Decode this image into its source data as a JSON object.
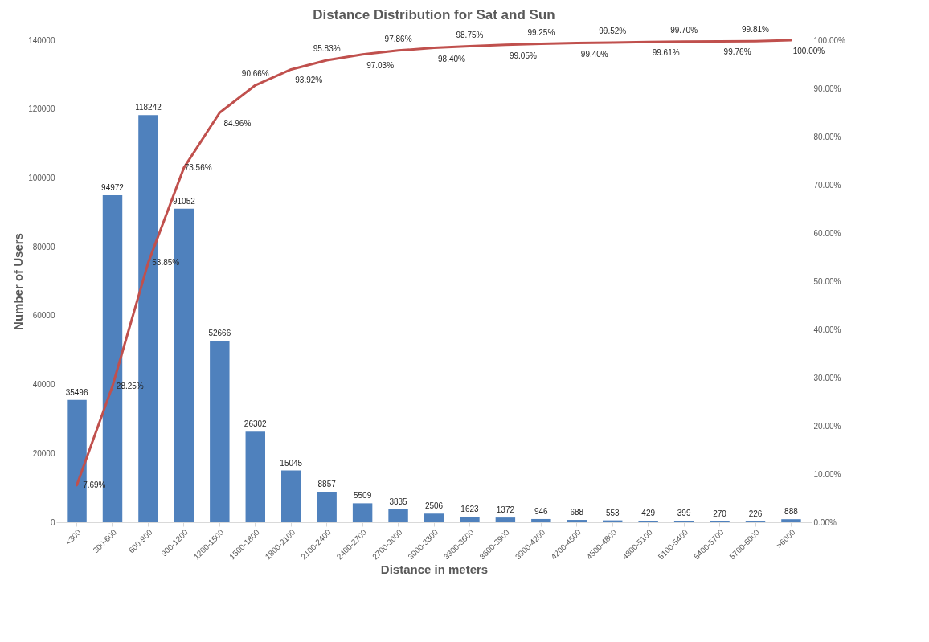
{
  "chart_data": {
    "type": "bar",
    "title": "Distance Distribution for Sat and Sun",
    "xlabel": "Distance in meters",
    "ylabel": "Number of Users",
    "categories": [
      "<300",
      "300-600",
      "600-900",
      "900-1200",
      "1200-1500",
      "1500-1800",
      "1800-2100",
      "2100-2400",
      "2400-2700",
      "2700-3000",
      "3000-3300",
      "3300-3600",
      "3600-3900",
      "3900-4200",
      "4200-4500",
      "4500-4800",
      "4800-5100",
      "5100-5400",
      "5400-5700",
      "5700-6000",
      ">6000"
    ],
    "series": [
      {
        "color": "#4f81bd",
        "values": [
          35496,
          94972,
          118242,
          91052,
          52666,
          26302,
          15045,
          8857,
          5509,
          3835,
          2506,
          1623,
          1372,
          946,
          688,
          553,
          429,
          399,
          270,
          226,
          888
        ]
      },
      {
        "type": "line",
        "axis": "y2",
        "color": "#c0504d",
        "values": [
          7.69,
          28.25,
          53.85,
          73.56,
          84.96,
          90.66,
          93.92,
          95.83,
          97.03,
          97.86,
          98.4,
          98.75,
          99.05,
          99.25,
          99.4,
          99.52,
          99.61,
          99.7,
          99.76,
          99.81,
          100.0
        ],
        "value_labels": [
          "7.69%",
          "28.25%",
          "53.85%",
          "73.56%",
          "84.96%",
          "90.66%",
          "93.92%",
          "95.83%",
          "97.03%",
          "97.86%",
          "98.40%",
          "98.75%",
          "99.05%",
          "99.25%",
          "99.40%",
          "99.52%",
          "99.61%",
          "99.70%",
          "99.76%",
          "99.81%",
          "100.00%"
        ]
      }
    ],
    "data_labels": true,
    "ylim": [
      0,
      140000
    ],
    "yticks": [
      0,
      20000,
      40000,
      60000,
      80000,
      100000,
      120000,
      140000
    ],
    "y2lim": [
      0,
      100
    ],
    "y2ticks": [
      {
        "value": 0,
        "label": "0.00%"
      },
      {
        "value": 10,
        "label": "10.00%"
      },
      {
        "value": 20,
        "label": "20.00%"
      },
      {
        "value": 30,
        "label": "30.00%"
      },
      {
        "value": 40,
        "label": "40.00%"
      },
      {
        "value": 50,
        "label": "50.00%"
      },
      {
        "value": 60,
        "label": "60.00%"
      },
      {
        "value": 70,
        "label": "70.00%"
      },
      {
        "value": 80,
        "label": "80.00%"
      },
      {
        "value": 90,
        "label": "90.00%"
      },
      {
        "value": 100,
        "label": "100.00%"
      }
    ],
    "grid": false
  }
}
